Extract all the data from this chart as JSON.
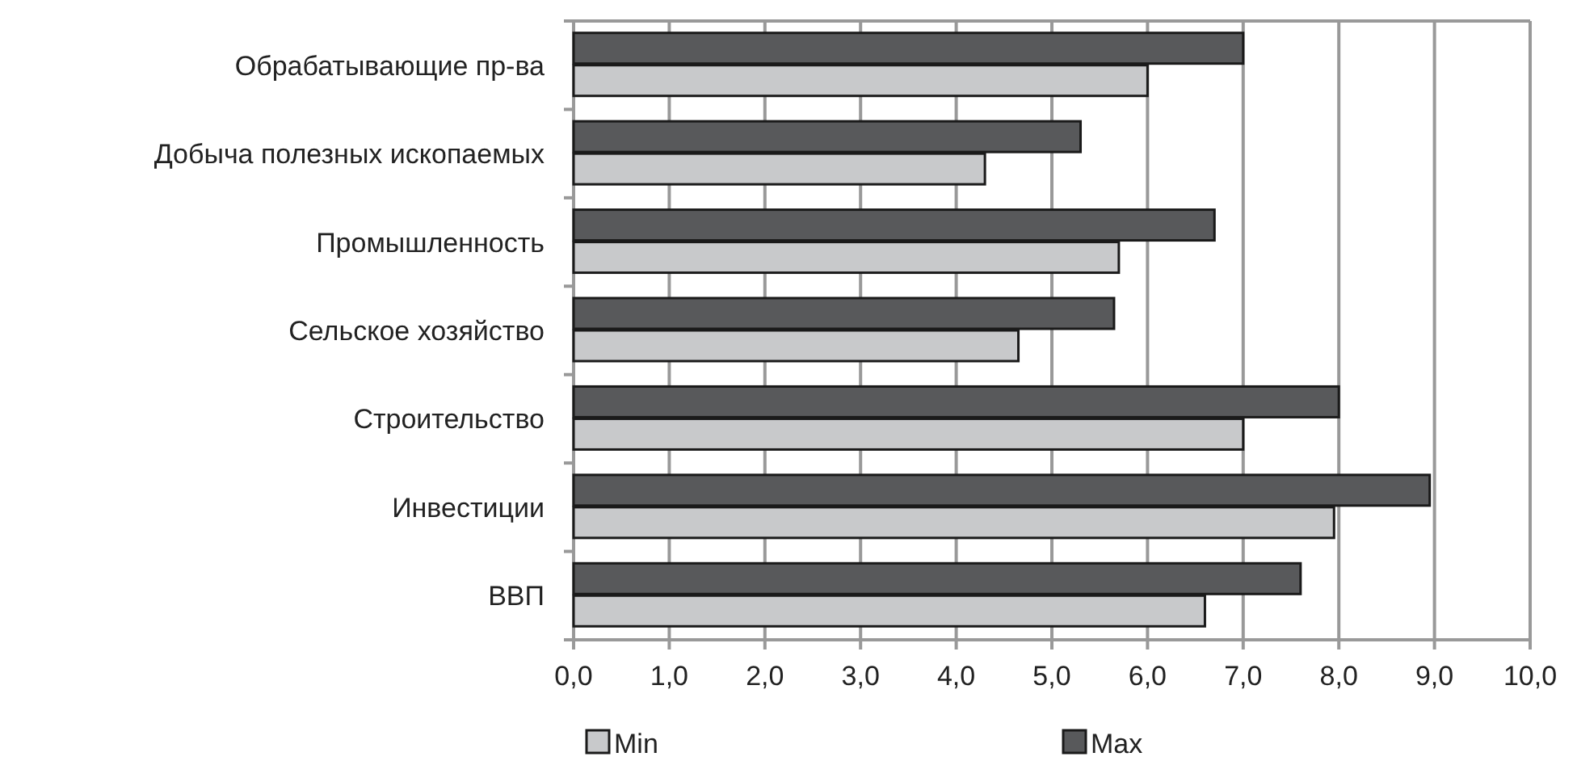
{
  "chart_data": {
    "type": "bar",
    "orientation": "horizontal",
    "categories": [
      "Обрабатывающие пр-ва",
      "Добыча полезных ископаемых",
      "Промышленность",
      "Сельское хозяйство",
      "Строительство",
      "Инвестиции",
      "ВВП"
    ],
    "series": [
      {
        "name": "Min",
        "color": "#c8c9cb",
        "values": [
          6.0,
          4.3,
          5.7,
          4.65,
          7.0,
          7.95,
          6.6
        ]
      },
      {
        "name": "Max",
        "color": "#58595b",
        "values": [
          7.0,
          5.3,
          6.7,
          5.65,
          8.0,
          8.95,
          7.6
        ]
      }
    ],
    "xlim": [
      0,
      10
    ],
    "xticks": [
      {
        "value": 0,
        "label": "0,0"
      },
      {
        "value": 1,
        "label": "1,0"
      },
      {
        "value": 2,
        "label": "2,0"
      },
      {
        "value": 3,
        "label": "3,0"
      },
      {
        "value": 4,
        "label": "4,0"
      },
      {
        "value": 5,
        "label": "5,0"
      },
      {
        "value": 6,
        "label": "6,0"
      },
      {
        "value": 7,
        "label": "7,0"
      },
      {
        "value": 8,
        "label": "8,0"
      },
      {
        "value": 9,
        "label": "9,0"
      },
      {
        "value": 10,
        "label": "10,0"
      }
    ],
    "grid": "x",
    "legend": "bottom"
  }
}
